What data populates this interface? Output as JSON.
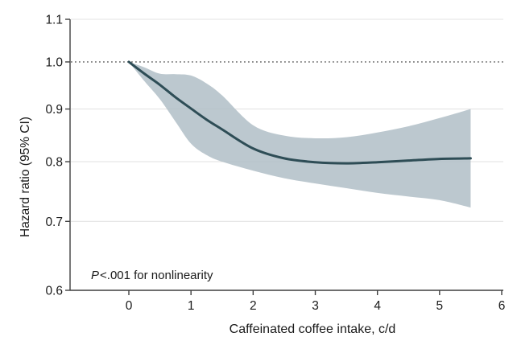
{
  "figure": {
    "y_axis_title": "Hazard ratio (95% CI)",
    "x_axis_title": "Caffeinated coffee intake, c/d",
    "annotation": {
      "p": "P",
      "rest": "<.001 for nonlinearity"
    }
  },
  "chart_data": {
    "type": "line",
    "title": "",
    "xlabel": "Caffeinated coffee intake, c/d",
    "ylabel": "Hazard ratio (95% CI)",
    "yscale": "log",
    "grid": "horizontal",
    "legend": "none",
    "xlim": [
      -0.95,
      6.05
    ],
    "ylim": [
      0.6,
      1.1
    ],
    "x_ticks": [
      "0",
      "1",
      "2",
      "3",
      "4",
      "5",
      "6"
    ],
    "y_ticks": [
      "1.1",
      "1.0",
      "0.9",
      "0.8",
      "0.7",
      "0.6"
    ],
    "y_gridlines": [
      1.1,
      0.9,
      0.8,
      0.7
    ],
    "reference_line_y": 1.0,
    "annotation": "P<.001 for nonlinearity",
    "x": [
      0,
      0.25,
      0.5,
      0.75,
      1,
      1.25,
      1.5,
      2,
      2.5,
      3,
      3.5,
      4,
      4.5,
      5,
      5.5
    ],
    "series": [
      {
        "name": "Hazard ratio",
        "values": [
          1.0,
          0.974,
          0.95,
          0.924,
          0.901,
          0.879,
          0.86,
          0.824,
          0.806,
          0.799,
          0.797,
          0.799,
          0.802,
          0.805,
          0.806
        ]
      },
      {
        "name": "Lower 95% CI",
        "values": [
          1.0,
          0.958,
          0.92,
          0.875,
          0.833,
          0.812,
          0.8,
          0.784,
          0.771,
          0.762,
          0.754,
          0.746,
          0.74,
          0.734,
          0.722
        ]
      },
      {
        "name": "Upper 95% CI",
        "values": [
          1.0,
          0.988,
          0.974,
          0.973,
          0.97,
          0.953,
          0.928,
          0.868,
          0.848,
          0.843,
          0.845,
          0.854,
          0.866,
          0.882,
          0.9
        ]
      }
    ],
    "colors": {
      "line": "#2e4d56",
      "band": "#b0bec7",
      "grid": "#e3e3e3",
      "axis": "#3f3f3f",
      "text": "#1a1a1a",
      "ref_line": "#4a4a4a",
      "background": "#ffffff"
    }
  }
}
